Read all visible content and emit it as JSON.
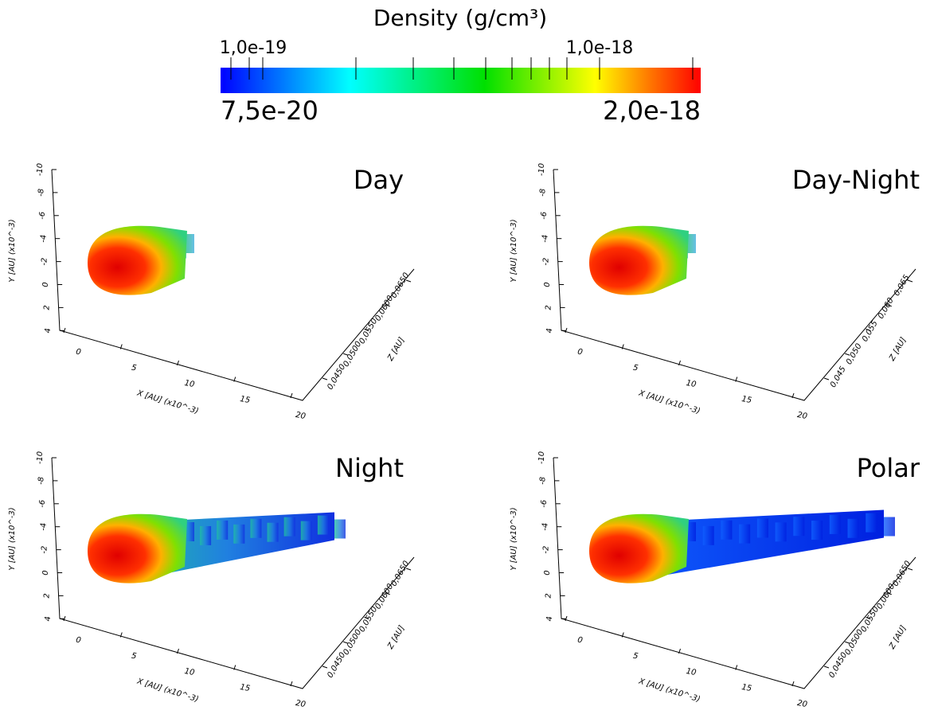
{
  "colorbar": {
    "title": "Density (g/cm³)",
    "ticks_top": [
      "1,0e-19",
      "1,0e-18"
    ],
    "min_label": "7,5e-20",
    "max_label": "2,0e-18"
  },
  "panels": [
    {
      "title": "Day",
      "y_axis_label": "Y [AU] (x10^-3)",
      "x_axis_label": "X [AU] (x10^-3)",
      "z_axis_label": "Z [AU]",
      "y_ticks": [
        "-10",
        "-8",
        "-6",
        "-4",
        "-2",
        "0",
        "2",
        "4"
      ],
      "x_ticks": [
        "0",
        "5",
        "10",
        "15",
        "20"
      ],
      "z_ticks": [
        "0,0450",
        "0,0500",
        "0,0550",
        "0,0600",
        "0,0650"
      ]
    },
    {
      "title": "Day-Night",
      "y_axis_label": "Y [AU] (x10^-3)",
      "x_axis_label": "X [AU] (x10^-3)",
      "z_axis_label": "Z [AU]",
      "y_ticks": [
        "-10",
        "-8",
        "-6",
        "-4",
        "-2",
        "0",
        "2",
        "4"
      ],
      "x_ticks": [
        "0",
        "5",
        "10",
        "15",
        "20"
      ],
      "z_ticks": [
        "0,045",
        "0,050",
        "0,055",
        "0,060",
        "0,065"
      ]
    },
    {
      "title": "Night",
      "y_axis_label": "Y [AU] (x10^-3)",
      "x_axis_label": "X [AU] (x10^-3)",
      "z_axis_label": "Z [AU]",
      "y_ticks": [
        "-10",
        "-8",
        "-6",
        "-4",
        "-2",
        "0",
        "2",
        "4"
      ],
      "x_ticks": [
        "0",
        "5",
        "10",
        "15",
        "20"
      ],
      "z_ticks": [
        "0,0450",
        "0,0500",
        "0,0550",
        "0,0600",
        "0,0650"
      ]
    },
    {
      "title": "Polar",
      "y_axis_label": "Y [AU] (x10^-3)",
      "x_axis_label": "X [AU] (x10^-3)",
      "z_axis_label": "Z [AU]",
      "y_ticks": [
        "-10",
        "-8",
        "-6",
        "-4",
        "-2",
        "0",
        "2",
        "4"
      ],
      "x_ticks": [
        "0",
        "5",
        "10",
        "15",
        "20"
      ],
      "z_ticks": [
        "0,0450",
        "0,0500",
        "0,0550",
        "0,0600",
        "0,0650"
      ]
    }
  ]
}
